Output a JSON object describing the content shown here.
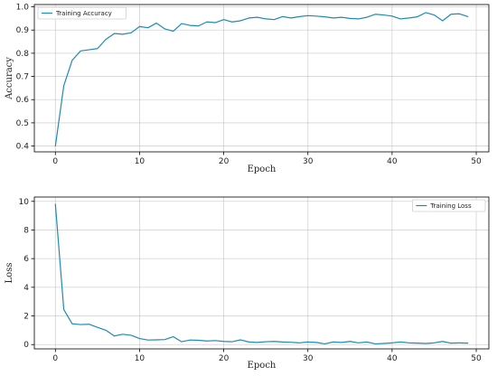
{
  "chart_data": [
    {
      "type": "line",
      "title": "",
      "xlabel": "Epoch",
      "ylabel": "Accuracy",
      "xlim": [
        -2.5,
        51.5
      ],
      "ylim": [
        0.375,
        1.01
      ],
      "xticks": [
        0,
        10,
        20,
        30,
        40,
        50
      ],
      "yticks": [
        0.4,
        0.5,
        0.6,
        0.7,
        0.8,
        0.9,
        1.0
      ],
      "ytick_labels": [
        "0.4",
        "0.5",
        "0.6",
        "0.7",
        "0.8",
        "0.9",
        "1.0"
      ],
      "grid": true,
      "legend_position": "top-left",
      "series": [
        {
          "name": "Training Accuracy",
          "color": "#1f8ab4",
          "x": [
            0,
            1,
            2,
            3,
            4,
            5,
            6,
            7,
            8,
            9,
            10,
            11,
            12,
            13,
            14,
            15,
            16,
            17,
            18,
            19,
            20,
            21,
            22,
            23,
            24,
            25,
            26,
            27,
            28,
            29,
            30,
            31,
            32,
            33,
            34,
            35,
            36,
            37,
            38,
            39,
            40,
            41,
            42,
            43,
            44,
            45,
            46,
            47,
            48,
            49
          ],
          "values": [
            0.4,
            0.66,
            0.77,
            0.81,
            0.815,
            0.82,
            0.86,
            0.885,
            0.882,
            0.888,
            0.915,
            0.91,
            0.93,
            0.905,
            0.895,
            0.928,
            0.92,
            0.918,
            0.935,
            0.932,
            0.945,
            0.935,
            0.94,
            0.952,
            0.955,
            0.948,
            0.945,
            0.958,
            0.952,
            0.958,
            0.962,
            0.96,
            0.957,
            0.952,
            0.955,
            0.95,
            0.948,
            0.955,
            0.968,
            0.965,
            0.96,
            0.948,
            0.952,
            0.957,
            0.975,
            0.965,
            0.94,
            0.968,
            0.97,
            0.958
          ]
        }
      ]
    },
    {
      "type": "line",
      "title": "",
      "xlabel": "Epoch",
      "ylabel": "Loss",
      "xlim": [
        -2.5,
        51.5
      ],
      "ylim": [
        -0.3,
        10.3
      ],
      "xticks": [
        0,
        10,
        20,
        30,
        40,
        50
      ],
      "yticks": [
        0,
        2,
        4,
        6,
        8,
        10
      ],
      "ytick_labels": [
        "0",
        "2",
        "4",
        "6",
        "8",
        "10"
      ],
      "grid": true,
      "legend_position": "top-right",
      "series": [
        {
          "name": "Training Loss",
          "color": "#1f8ab4",
          "x": [
            0,
            1,
            2,
            3,
            4,
            5,
            6,
            7,
            8,
            9,
            10,
            11,
            12,
            13,
            14,
            15,
            16,
            17,
            18,
            19,
            20,
            21,
            22,
            23,
            24,
            25,
            26,
            27,
            28,
            29,
            30,
            31,
            32,
            33,
            34,
            35,
            36,
            37,
            38,
            39,
            40,
            41,
            42,
            43,
            44,
            45,
            46,
            47,
            48,
            49
          ],
          "values": [
            9.8,
            2.45,
            1.45,
            1.4,
            1.42,
            1.2,
            1.0,
            0.6,
            0.72,
            0.65,
            0.42,
            0.32,
            0.33,
            0.35,
            0.55,
            0.2,
            0.32,
            0.3,
            0.25,
            0.28,
            0.22,
            0.2,
            0.33,
            0.18,
            0.15,
            0.2,
            0.22,
            0.18,
            0.16,
            0.12,
            0.18,
            0.15,
            0.05,
            0.18,
            0.15,
            0.22,
            0.12,
            0.18,
            0.05,
            0.08,
            0.12,
            0.18,
            0.12,
            0.1,
            0.08,
            0.12,
            0.22,
            0.1,
            0.12,
            0.1
          ]
        }
      ]
    }
  ]
}
